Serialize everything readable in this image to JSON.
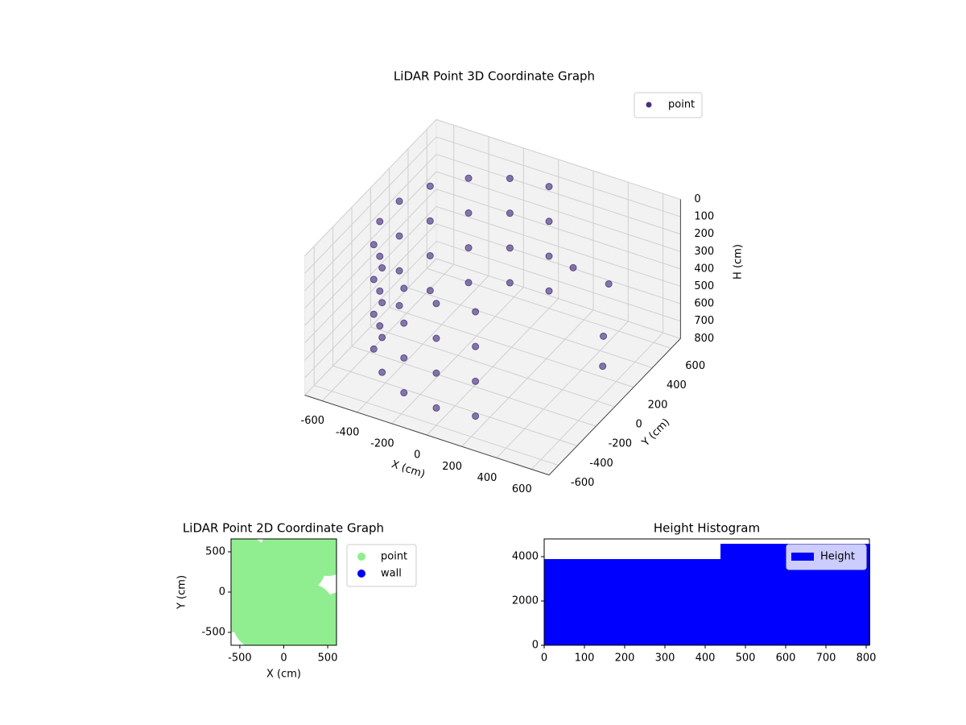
{
  "chart_data": [
    {
      "type": "scatter3d",
      "title": "LiDAR Point 3D Coordinate Graph",
      "x_label": "X (cm)",
      "y_label": "Y (cm)",
      "z_label": "H (cm)",
      "xlim": [
        -700,
        700
      ],
      "ylim": [
        -700,
        700
      ],
      "zlim": [
        800,
        0
      ],
      "xticks": [
        -600,
        -400,
        -200,
        0,
        200,
        400,
        600
      ],
      "yticks": [
        -600,
        -400,
        -200,
        0,
        200,
        400,
        600
      ],
      "zticks": [
        0,
        100,
        200,
        300,
        400,
        500,
        600,
        700,
        800
      ],
      "legend": "upper right",
      "series": [
        {
          "name": "point",
          "color": "#46327e",
          "x": [
            0,
            0,
            0,
            0,
            -205,
            -205,
            -205,
            -205,
            -386,
            -386,
            -386,
            -386,
            -520,
            -520,
            -520,
            -520,
            -591,
            -591,
            -591,
            -591,
            -591,
            -591,
            -591,
            -591,
            -520,
            -520,
            -520,
            -520,
            -386,
            -386,
            -386,
            -386,
            -205,
            -205,
            -205,
            -205,
            0,
            0,
            0,
            0,
            205,
            205,
            205,
            205,
            450,
            500,
            550,
            300
          ],
          "y": [
            600,
            600,
            600,
            600,
            564,
            564,
            564,
            564,
            460,
            460,
            460,
            460,
            300,
            300,
            300,
            300,
            104,
            104,
            104,
            104,
            -104,
            -104,
            -104,
            -104,
            -300,
            -300,
            -300,
            -300,
            -460,
            -460,
            -460,
            -460,
            -564,
            -564,
            -564,
            -564,
            -600,
            -600,
            -600,
            -600,
            -564,
            -564,
            -564,
            -564,
            400,
            250,
            150,
            300
          ],
          "z": [
            100,
            300,
            500,
            700,
            100,
            300,
            500,
            700,
            100,
            300,
            500,
            700,
            100,
            300,
            500,
            700,
            100,
            300,
            500,
            700,
            100,
            300,
            500,
            700,
            100,
            300,
            500,
            700,
            100,
            300,
            500,
            700,
            100,
            300,
            500,
            700,
            100,
            300,
            500,
            700,
            100,
            300,
            500,
            700,
            400,
            600,
            700,
            300
          ]
        }
      ]
    },
    {
      "type": "scatter",
      "title": "LiDAR Point 2D Coordinate Graph",
      "x_label": "X (cm)",
      "y_label": "Y (cm)",
      "xlim": [
        -600,
        600
      ],
      "ylim": [
        -660,
        660
      ],
      "xticks": [
        -500,
        0,
        500
      ],
      "yticks": [
        -500,
        0,
        500
      ],
      "legend": "outside right",
      "series": [
        {
          "name": "point",
          "color": "#90ee90",
          "x": [
            -500,
            -400,
            -300,
            -200,
            0,
            100,
            200,
            -550,
            0,
            -100,
            250,
            500,
            520,
            650,
            300,
            -300,
            100,
            -450,
            200,
            -200,
            -580,
            -350,
            50,
            150
          ],
          "y": [
            0,
            300,
            -400,
            200,
            500,
            -500,
            300,
            -200,
            0,
            -300,
            500,
            500,
            -450,
            -300,
            -200,
            0,
            100,
            400,
            -600,
            -550,
            150,
            -150,
            -200,
            400
          ]
        },
        {
          "name": "wall",
          "color": "#0000ff",
          "x": [],
          "y": []
        }
      ]
    },
    {
      "type": "histogram",
      "title": "Height Histogram",
      "bins": [
        0,
        438,
        810
      ],
      "xlim": [
        0,
        808
      ],
      "ylim": [
        0,
        4800
      ],
      "xticks": [
        0,
        100,
        200,
        300,
        400,
        500,
        600,
        700,
        800
      ],
      "yticks": [
        0,
        2000,
        4000
      ],
      "legend": "upper right",
      "series": [
        {
          "name": "Height",
          "color": "#0000ff",
          "values": [
            3890,
            4580
          ]
        }
      ]
    }
  ]
}
